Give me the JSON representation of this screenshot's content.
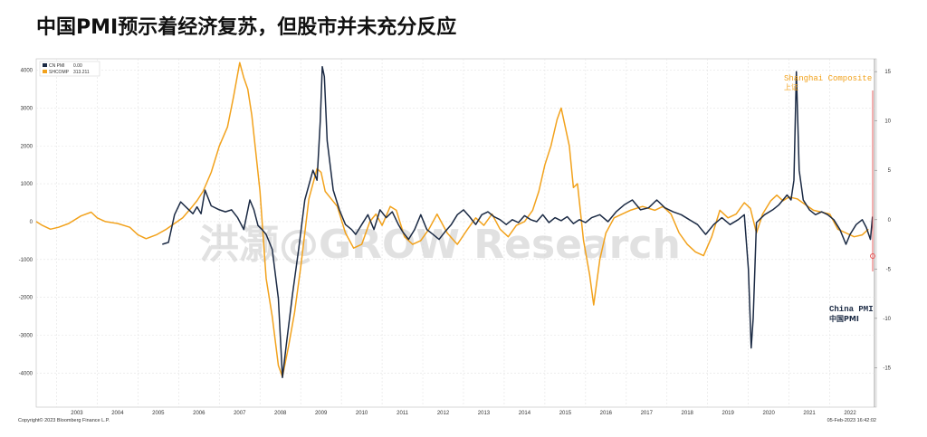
{
  "title": "中国PMI预示着经济复苏，但股市并未充分反应",
  "watermark": "洪灏@GROW Research",
  "footer": {
    "copyright": "Copyright© 2023 Bloomberg Finance L.P.",
    "date": "05-Feb-2023 16:42:02"
  },
  "legend": [
    {
      "label": "CN PMI",
      "value": "0.00",
      "color": "#1b2a44"
    },
    {
      "label": "SHCOMP",
      "value": "313.211",
      "color": "#f2a21c"
    }
  ],
  "annotations": {
    "shanghai_en": "Shanghai Composite",
    "shanghai_cn": "上证",
    "pmi_en": "China PMI",
    "pmi_cn": "中国PMI"
  },
  "colors": {
    "pmi": "#1b2a44",
    "shcomp": "#f2a21c",
    "marker": "#e23b3b"
  },
  "chart_data": {
    "type": "line",
    "x_ticks": [
      "2003",
      "2004",
      "2005",
      "2006",
      "2007",
      "2008",
      "2009",
      "2010",
      "2011",
      "2012",
      "2013",
      "2014",
      "2015",
      "2016",
      "2017",
      "2018",
      "2019",
      "2020",
      "2021",
      "2022"
    ],
    "xlim": [
      2002.5,
      2023.1
    ],
    "left_axis": {
      "ticks": [
        "4000",
        "3000",
        "2000",
        "1000",
        "0",
        "-1000",
        "-2000",
        "-3000",
        "-4000"
      ],
      "ylim": [
        -4900,
        4300
      ]
    },
    "right_axis": {
      "ticks": [
        "15",
        "10",
        "5",
        "0",
        "-5",
        "-10",
        "-15"
      ],
      "ylim": [
        -19,
        16.3
      ]
    },
    "series": [
      {
        "name": "SHCOMP",
        "axis": "left",
        "points": [
          [
            2002.5,
            0
          ],
          [
            2002.65,
            -100
          ],
          [
            2002.85,
            -200
          ],
          [
            2003.05,
            -150
          ],
          [
            2003.3,
            -50
          ],
          [
            2003.6,
            150
          ],
          [
            2003.85,
            250
          ],
          [
            2004.0,
            100
          ],
          [
            2004.2,
            0
          ],
          [
            2004.5,
            -50
          ],
          [
            2004.8,
            -150
          ],
          [
            2005.0,
            -350
          ],
          [
            2005.2,
            -450
          ],
          [
            2005.45,
            -350
          ],
          [
            2005.7,
            -200
          ],
          [
            2005.9,
            -50
          ],
          [
            2006.1,
            100
          ],
          [
            2006.3,
            350
          ],
          [
            2006.45,
            550
          ],
          [
            2006.6,
            800
          ],
          [
            2006.8,
            1300
          ],
          [
            2007.0,
            2000
          ],
          [
            2007.2,
            2500
          ],
          [
            2007.35,
            3300
          ],
          [
            2007.5,
            4200
          ],
          [
            2007.6,
            3800
          ],
          [
            2007.7,
            3500
          ],
          [
            2007.8,
            2800
          ],
          [
            2007.9,
            1800
          ],
          [
            2008.0,
            800
          ],
          [
            2008.15,
            -1500
          ],
          [
            2008.3,
            -2500
          ],
          [
            2008.45,
            -3800
          ],
          [
            2008.55,
            -4100
          ],
          [
            2008.7,
            -3300
          ],
          [
            2008.85,
            -2400
          ],
          [
            2009.0,
            -1200
          ],
          [
            2009.2,
            600
          ],
          [
            2009.4,
            1400
          ],
          [
            2009.5,
            1300
          ],
          [
            2009.6,
            800
          ],
          [
            2009.75,
            600
          ],
          [
            2009.9,
            400
          ],
          [
            2010.1,
            -300
          ],
          [
            2010.3,
            -700
          ],
          [
            2010.5,
            -600
          ],
          [
            2010.7,
            0
          ],
          [
            2010.85,
            200
          ],
          [
            2011.0,
            -100
          ],
          [
            2011.2,
            400
          ],
          [
            2011.35,
            300
          ],
          [
            2011.55,
            -400
          ],
          [
            2011.75,
            -600
          ],
          [
            2011.95,
            -500
          ],
          [
            2012.15,
            -200
          ],
          [
            2012.35,
            200
          ],
          [
            2012.6,
            -300
          ],
          [
            2012.85,
            -600
          ],
          [
            2013.1,
            -200
          ],
          [
            2013.3,
            100
          ],
          [
            2013.5,
            -100
          ],
          [
            2013.7,
            200
          ],
          [
            2013.9,
            -200
          ],
          [
            2014.1,
            -400
          ],
          [
            2014.3,
            -100
          ],
          [
            2014.5,
            0
          ],
          [
            2014.7,
            300
          ],
          [
            2014.85,
            800
          ],
          [
            2015.0,
            1500
          ],
          [
            2015.15,
            2000
          ],
          [
            2015.3,
            2700
          ],
          [
            2015.4,
            3000
          ],
          [
            2015.5,
            2500
          ],
          [
            2015.6,
            2000
          ],
          [
            2015.7,
            900
          ],
          [
            2015.8,
            1000
          ],
          [
            2015.95,
            -500
          ],
          [
            2016.1,
            -1400
          ],
          [
            2016.2,
            -2200
          ],
          [
            2016.35,
            -1000
          ],
          [
            2016.5,
            -300
          ],
          [
            2016.7,
            100
          ],
          [
            2016.9,
            200
          ],
          [
            2017.1,
            300
          ],
          [
            2017.4,
            400
          ],
          [
            2017.7,
            300
          ],
          [
            2017.9,
            400
          ],
          [
            2018.1,
            200
          ],
          [
            2018.3,
            -300
          ],
          [
            2018.5,
            -600
          ],
          [
            2018.7,
            -800
          ],
          [
            2018.9,
            -900
          ],
          [
            2019.1,
            -400
          ],
          [
            2019.3,
            300
          ],
          [
            2019.5,
            100
          ],
          [
            2019.7,
            200
          ],
          [
            2019.9,
            500
          ],
          [
            2020.05,
            350
          ],
          [
            2020.2,
            -300
          ],
          [
            2020.35,
            200
          ],
          [
            2020.55,
            550
          ],
          [
            2020.7,
            700
          ],
          [
            2020.85,
            550
          ],
          [
            2021.0,
            650
          ],
          [
            2021.2,
            600
          ],
          [
            2021.4,
            450
          ],
          [
            2021.6,
            300
          ],
          [
            2021.8,
            250
          ],
          [
            2022.0,
            200
          ],
          [
            2022.2,
            -200
          ],
          [
            2022.4,
            -300
          ],
          [
            2022.6,
            -400
          ],
          [
            2022.8,
            -350
          ],
          [
            2022.95,
            -200
          ]
        ]
      },
      {
        "name": "CN PMI",
        "axis": "right",
        "points": [
          [
            2005.6,
            -2.5
          ],
          [
            2005.75,
            -2.3
          ],
          [
            2005.9,
            0.5
          ],
          [
            2006.05,
            1.8
          ],
          [
            2006.2,
            1.2
          ],
          [
            2006.35,
            0.6
          ],
          [
            2006.45,
            1.3
          ],
          [
            2006.55,
            0.6
          ],
          [
            2006.65,
            3.0
          ],
          [
            2006.8,
            1.4
          ],
          [
            2007.0,
            1.0
          ],
          [
            2007.15,
            0.8
          ],
          [
            2007.3,
            1.0
          ],
          [
            2007.45,
            0.2
          ],
          [
            2007.6,
            -1.0
          ],
          [
            2007.75,
            2.0
          ],
          [
            2007.85,
            1.0
          ],
          [
            2007.95,
            -0.6
          ],
          [
            2008.05,
            -1.0
          ],
          [
            2008.15,
            -1.5
          ],
          [
            2008.3,
            -3.0
          ],
          [
            2008.45,
            -8.0
          ],
          [
            2008.55,
            -16.0
          ],
          [
            2008.65,
            -12.5
          ],
          [
            2008.8,
            -7.5
          ],
          [
            2008.95,
            -3.0
          ],
          [
            2009.1,
            2.0
          ],
          [
            2009.3,
            5.0
          ],
          [
            2009.4,
            4.0
          ],
          [
            2009.48,
            10.0
          ],
          [
            2009.53,
            15.5
          ],
          [
            2009.58,
            14.5
          ],
          [
            2009.65,
            8.0
          ],
          [
            2009.8,
            3.0
          ],
          [
            2009.95,
            1.0
          ],
          [
            2010.1,
            -0.5
          ],
          [
            2010.25,
            -1.0
          ],
          [
            2010.35,
            -1.5
          ],
          [
            2010.5,
            -0.5
          ],
          [
            2010.65,
            0.5
          ],
          [
            2010.8,
            -1.0
          ],
          [
            2010.95,
            1.0
          ],
          [
            2011.1,
            0.2
          ],
          [
            2011.25,
            0.8
          ],
          [
            2011.4,
            -0.5
          ],
          [
            2011.5,
            -1.2
          ],
          [
            2011.65,
            -2.0
          ],
          [
            2011.8,
            -1.0
          ],
          [
            2011.95,
            0.5
          ],
          [
            2012.1,
            -1.0
          ],
          [
            2012.25,
            -1.5
          ],
          [
            2012.4,
            -2.0
          ],
          [
            2012.55,
            -1.2
          ],
          [
            2012.7,
            -0.5
          ],
          [
            2012.85,
            0.5
          ],
          [
            2013.0,
            1.0
          ],
          [
            2013.15,
            0.3
          ],
          [
            2013.3,
            -0.5
          ],
          [
            2013.45,
            0.5
          ],
          [
            2013.6,
            0.8
          ],
          [
            2013.75,
            0.3
          ],
          [
            2013.9,
            0.0
          ],
          [
            2014.05,
            -0.5
          ],
          [
            2014.2,
            0.0
          ],
          [
            2014.35,
            -0.3
          ],
          [
            2014.5,
            0.4
          ],
          [
            2014.65,
            0.0
          ],
          [
            2014.8,
            -0.2
          ],
          [
            2014.95,
            0.5
          ],
          [
            2015.1,
            -0.3
          ],
          [
            2015.25,
            0.2
          ],
          [
            2015.4,
            -0.1
          ],
          [
            2015.55,
            0.3
          ],
          [
            2015.7,
            -0.4
          ],
          [
            2015.85,
            0.0
          ],
          [
            2016.0,
            -0.3
          ],
          [
            2016.15,
            0.2
          ],
          [
            2016.35,
            0.5
          ],
          [
            2016.55,
            -0.2
          ],
          [
            2016.75,
            0.8
          ],
          [
            2016.95,
            1.5
          ],
          [
            2017.15,
            2.0
          ],
          [
            2017.35,
            1.0
          ],
          [
            2017.55,
            1.2
          ],
          [
            2017.75,
            2.0
          ],
          [
            2017.95,
            1.2
          ],
          [
            2018.15,
            0.8
          ],
          [
            2018.35,
            0.5
          ],
          [
            2018.55,
            0.0
          ],
          [
            2018.75,
            -0.5
          ],
          [
            2018.95,
            -1.5
          ],
          [
            2019.15,
            -0.5
          ],
          [
            2019.35,
            0.2
          ],
          [
            2019.55,
            -0.5
          ],
          [
            2019.75,
            0.0
          ],
          [
            2019.9,
            0.5
          ],
          [
            2020.0,
            -5.0
          ],
          [
            2020.07,
            -13.0
          ],
          [
            2020.12,
            -10.0
          ],
          [
            2020.2,
            -0.3
          ],
          [
            2020.4,
            0.5
          ],
          [
            2020.6,
            1.0
          ],
          [
            2020.75,
            1.5
          ],
          [
            2020.85,
            2.0
          ],
          [
            2020.95,
            2.5
          ],
          [
            2021.05,
            2.0
          ],
          [
            2021.12,
            4.0
          ],
          [
            2021.18,
            15.0
          ],
          [
            2021.25,
            5.0
          ],
          [
            2021.35,
            2.0
          ],
          [
            2021.5,
            1.0
          ],
          [
            2021.65,
            0.5
          ],
          [
            2021.8,
            0.8
          ],
          [
            2021.95,
            0.5
          ],
          [
            2022.1,
            0.0
          ],
          [
            2022.25,
            -1.0
          ],
          [
            2022.4,
            -2.5
          ],
          [
            2022.5,
            -1.5
          ],
          [
            2022.65,
            -0.5
          ],
          [
            2022.8,
            0.0
          ],
          [
            2022.9,
            -0.8
          ],
          [
            2023.0,
            -2.0
          ],
          [
            2023.05,
            0.3
          ]
        ]
      }
    ]
  }
}
